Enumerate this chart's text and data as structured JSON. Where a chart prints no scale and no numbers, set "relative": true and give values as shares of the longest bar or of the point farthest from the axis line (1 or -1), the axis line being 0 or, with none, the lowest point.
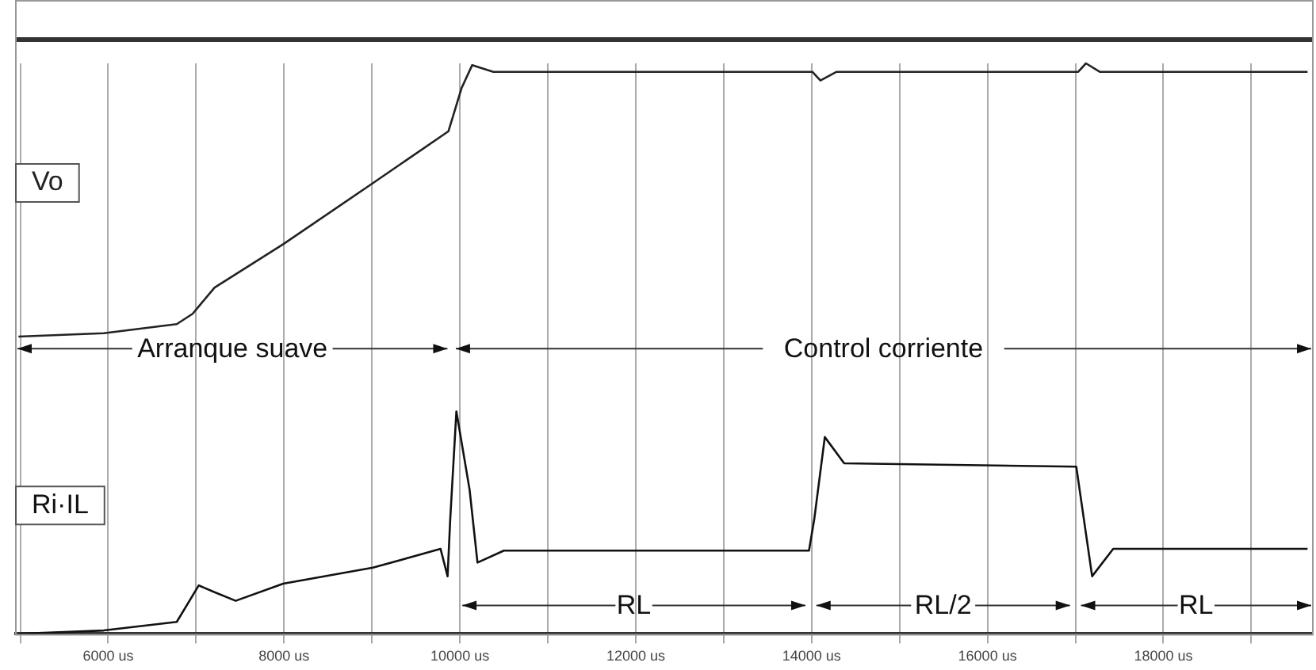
{
  "chart_data": {
    "type": "line",
    "relative": true,
    "grid": "x",
    "legend": false,
    "marker": "none",
    "line_style": "solid",
    "xlim": [
      4950,
      19700
    ],
    "xticks": [
      {
        "value": 5000,
        "label": null
      },
      {
        "value": 6000,
        "label": "6000 us"
      },
      {
        "value": 7000,
        "label": null
      },
      {
        "value": 8000,
        "label": "8000 us"
      },
      {
        "value": 9000,
        "label": null
      },
      {
        "value": 10000,
        "label": "10000 us"
      },
      {
        "value": 11000,
        "label": null
      },
      {
        "value": 12000,
        "label": "12000 us"
      },
      {
        "value": 13000,
        "label": null
      },
      {
        "value": 14000,
        "label": "14000 us"
      },
      {
        "value": 15000,
        "label": null
      },
      {
        "value": 16000,
        "label": "16000 us"
      },
      {
        "value": 17000,
        "label": null
      },
      {
        "value": 18000,
        "label": "18000 us"
      },
      {
        "value": 19000,
        "label": null
      }
    ],
    "series": [
      {
        "name": "Vo",
        "color": "#222222",
        "x": [
          4980,
          5950,
          6780,
          6960,
          7210,
          7990,
          9010,
          9870,
          10020,
          10140,
          10380,
          14010,
          14100,
          14280,
          17030,
          17120,
          17280,
          19640
        ],
        "values": [
          0.521,
          0.527,
          0.543,
          0.561,
          0.607,
          0.683,
          0.79,
          0.881,
          0.957,
          0.997,
          0.985,
          0.985,
          0.97,
          0.985,
          0.985,
          1.0,
          0.985,
          0.985
        ]
      },
      {
        "name": "Ri·IL",
        "color": "#111111",
        "x": [
          4980,
          5950,
          6780,
          7030,
          7210,
          7450,
          7990,
          9010,
          9780,
          9860,
          9890,
          9960,
          10110,
          10200,
          10500,
          13970,
          14030,
          14150,
          14370,
          17010,
          17190,
          17430,
          19640
        ],
        "values": [
          0,
          0.006,
          0.021,
          0.085,
          0.073,
          0.058,
          0.088,
          0.116,
          0.149,
          0.101,
          0.201,
          0.39,
          0.253,
          0.125,
          0.146,
          0.146,
          0.201,
          0.345,
          0.299,
          0.293,
          0.101,
          0.149,
          0.149
        ]
      }
    ],
    "annotations": [
      "Arranque suave",
      "Control corriente",
      "RL",
      "RL/2",
      "RL"
    ]
  }
}
